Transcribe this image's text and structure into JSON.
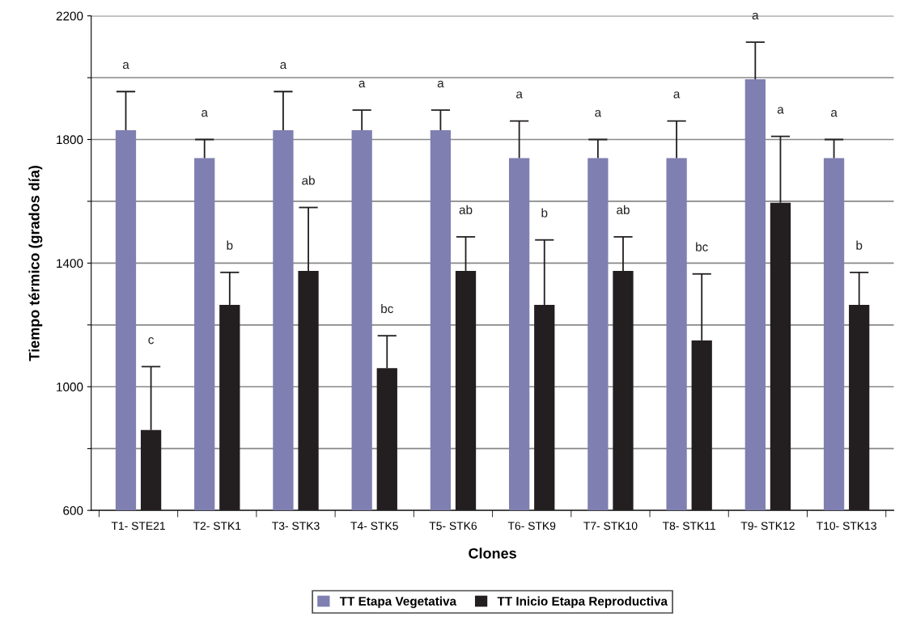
{
  "chart_data": {
    "type": "bar",
    "xlabel": "Clones",
    "ylabel": "Tiempo térmico (grados día)",
    "categories": [
      "T1- STE21",
      "T2- STK1",
      "T3- STK3",
      "T4- STK5",
      "T5- STK6",
      "T6- STK9",
      "T7- STK10",
      "T8- STK11",
      "T9- STK12",
      "T10- STK13"
    ],
    "series": [
      {
        "name": "TT Etapa Vegetativa",
        "color": "#7f7fb2",
        "values": [
          1830,
          1740,
          1830,
          1830,
          1830,
          1740,
          1740,
          1740,
          1995,
          1740
        ],
        "errors": [
          [
            1830,
            1955
          ],
          [
            1740,
            1800
          ],
          [
            1830,
            1955
          ],
          [
            1830,
            1895
          ],
          [
            1830,
            1895
          ],
          [
            1740,
            1860
          ],
          [
            1740,
            1800
          ],
          [
            1740,
            1860
          ],
          [
            1995,
            2115
          ],
          [
            1740,
            1800
          ]
        ]
      },
      {
        "name": "TT Inicio Etapa Reproductiva",
        "color": "#231f20",
        "values": [
          860,
          1265,
          1375,
          1060,
          1375,
          1265,
          1375,
          1150,
          1595,
          1265
        ],
        "errors": [
          [
            860,
            1065
          ],
          [
            1265,
            1370
          ],
          [
            1375,
            1580
          ],
          [
            1060,
            1165
          ],
          [
            1375,
            1485
          ],
          [
            1265,
            1475
          ],
          [
            1375,
            1485
          ],
          [
            1150,
            1365
          ],
          [
            1595,
            1810
          ],
          [
            1265,
            1370
          ]
        ]
      }
    ],
    "ylim": [
      600,
      2200
    ],
    "yticks": [
      600,
      {
        "value": 800,
        "label": null
      },
      1000,
      {
        "value": 1200,
        "label": null
      },
      1400,
      {
        "value": 1600,
        "label": null
      },
      1800,
      {
        "value": 2000,
        "label": null
      },
      2200
    ],
    "grid": "y",
    "legend": "bottom",
    "annotations": [
      {
        "text": "a",
        "x": "T1- STE21",
        "y": 1955
      },
      {
        "text": "c",
        "x": "T1- STE21",
        "y": 1065
      },
      {
        "text": "a",
        "x": "T2- STK1",
        "y": 1800
      },
      {
        "text": "b",
        "x": "T2- STK1",
        "y": 1370
      },
      {
        "text": "a",
        "x": "T3- STK3",
        "y": 1955
      },
      {
        "text": "ab",
        "x": "T3- STK3",
        "y": 1580
      },
      {
        "text": "a",
        "x": "T4- STK5",
        "y": 1895
      },
      {
        "text": "bc",
        "x": "T4- STK5",
        "y": 1165
      },
      {
        "text": "a",
        "x": "T5- STK6",
        "y": 1895
      },
      {
        "text": "ab",
        "x": "T5- STK6",
        "y": 1485
      },
      {
        "text": "a",
        "x": "T6- STK9",
        "y": 1860
      },
      {
        "text": "b",
        "x": "T6- STK9",
        "y": 1475
      },
      {
        "text": "a",
        "x": "T7- STK10",
        "y": 1800
      },
      {
        "text": "ab",
        "x": "T7- STK10",
        "y": 1485
      },
      {
        "text": "a",
        "x": "T8- STK11",
        "y": 1860
      },
      {
        "text": "bc",
        "x": "T8- STK11",
        "y": 1365
      },
      {
        "text": "a",
        "x": "T9- STK12",
        "y": 2115
      },
      {
        "text": "a",
        "x": "T9- STK12",
        "y": 1810
      },
      {
        "text": "a",
        "x": "T10- STK13",
        "y": 1800
      },
      {
        "text": "b",
        "x": "T10- STK13",
        "y": 1370
      }
    ]
  }
}
